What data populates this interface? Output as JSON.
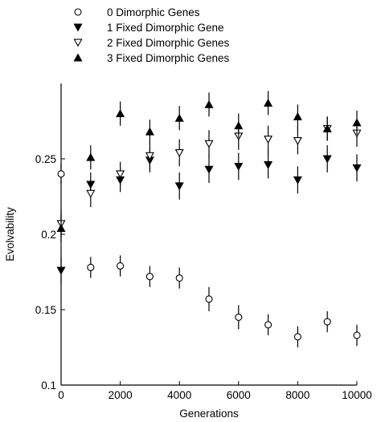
{
  "chart_data": {
    "type": "scatter",
    "title": "",
    "xlabel": "Generations",
    "ylabel": "Evolvability",
    "xlim": [
      0,
      10000
    ],
    "ylim": [
      0.1,
      0.3
    ],
    "grid": false,
    "legend_position": "top-left",
    "x_ticks": [
      0,
      2000,
      4000,
      6000,
      8000,
      10000
    ],
    "x_tick_labels": [
      "0",
      "2000",
      "4000",
      "6000",
      "8000",
      "10000"
    ],
    "y_ticks": [
      0.1,
      0.15,
      0.2,
      0.25
    ],
    "y_tick_labels": [
      "0.1",
      "0.15",
      "0.2",
      "0.25"
    ],
    "x": [
      0,
      1000,
      2000,
      3000,
      4000,
      5000,
      6000,
      7000,
      8000,
      9000,
      10000
    ],
    "series": [
      {
        "name": "0 Dimorphic Genes",
        "marker": "circle-open",
        "values": [
          0.24,
          0.178,
          0.179,
          0.172,
          0.171,
          0.157,
          0.145,
          0.14,
          0.132,
          0.142,
          0.133
        ],
        "err": [
          0.007,
          0.007,
          0.007,
          0.007,
          0.007,
          0.008,
          0.008,
          0.007,
          0.007,
          0.007,
          0.007
        ]
      },
      {
        "name": "1 Fixed Dimorphic Gene",
        "marker": "triangle-down-filled",
        "values": [
          0.176,
          0.233,
          0.236,
          0.249,
          0.232,
          0.243,
          0.245,
          0.246,
          0.236,
          0.25,
          0.244
        ],
        "err": [
          0.009,
          0.008,
          0.008,
          0.008,
          0.009,
          0.009,
          0.009,
          0.009,
          0.009,
          0.009,
          0.009
        ]
      },
      {
        "name": "2 Fixed Dimorphic Genes",
        "marker": "triangle-down-open",
        "values": [
          0.207,
          0.227,
          0.24,
          0.252,
          0.254,
          0.26,
          0.265,
          0.263,
          0.262,
          0.27,
          0.267
        ],
        "err": [
          0.009,
          0.009,
          0.008,
          0.009,
          0.009,
          0.009,
          0.009,
          0.009,
          0.009,
          0.008,
          0.009
        ]
      },
      {
        "name": "3 Fixed Dimorphic Genes",
        "marker": "triangle-up-filled",
        "values": [
          0.204,
          0.251,
          0.28,
          0.268,
          0.277,
          0.286,
          0.272,
          0.287,
          0.278,
          0.27,
          0.274
        ],
        "err": [
          0.009,
          0.008,
          0.008,
          0.008,
          0.008,
          0.008,
          0.008,
          0.008,
          0.008,
          0.008,
          0.008
        ]
      }
    ]
  }
}
